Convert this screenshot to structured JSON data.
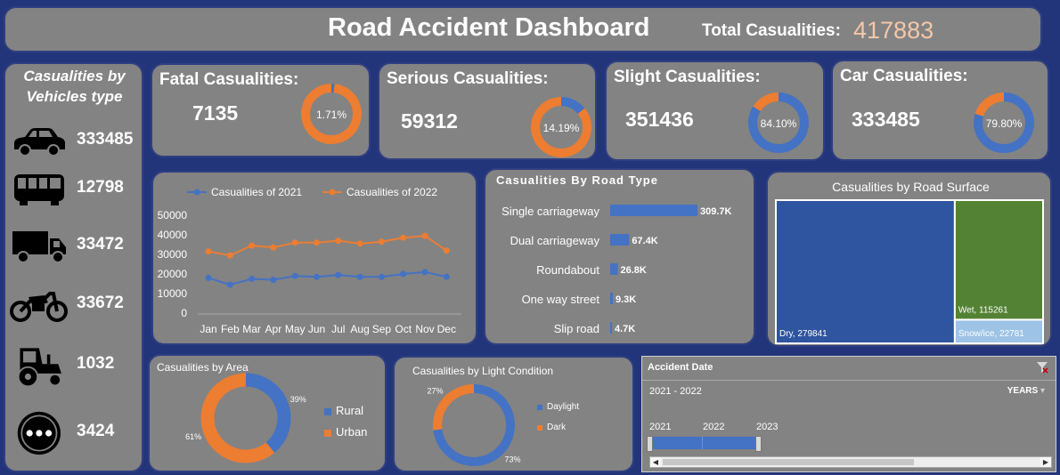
{
  "header": {
    "title": "Road Accident Dashboard",
    "total_label": "Total Casualities:",
    "total_value": "417883"
  },
  "vehicles": {
    "title_line1": "Casualities by",
    "title_line2": "Vehicles type",
    "items": [
      {
        "icon": "car-icon",
        "value": "333485"
      },
      {
        "icon": "bus-icon",
        "value": "12798"
      },
      {
        "icon": "truck-icon",
        "value": "33472"
      },
      {
        "icon": "motorcycle-icon",
        "value": "33672"
      },
      {
        "icon": "tractor-icon",
        "value": "1032"
      },
      {
        "icon": "more-icon",
        "value": "3424"
      }
    ]
  },
  "kpis": [
    {
      "label": "Fatal Casualities:",
      "value": "7135",
      "pct_label": "1.71%",
      "pct": 0.0171
    },
    {
      "label": "Serious Casualities:",
      "value": "59312",
      "pct_label": "14.19%",
      "pct": 0.1419
    },
    {
      "label": "Slight Casualities:",
      "value": "351436",
      "pct_label": "84.10%",
      "pct": 0.841
    },
    {
      "label": "Car Casualities:",
      "value": "333485",
      "pct_label": "79.80%",
      "pct": 0.798
    }
  ],
  "colors": {
    "background": "#23357a",
    "panel": "#838383",
    "blue": "#4472c4",
    "orange": "#ed7d31",
    "green": "#548235",
    "light_blue": "#9dc3e6"
  },
  "chart_data": [
    {
      "type": "line",
      "categories": [
        "Jan",
        "Feb",
        "Mar",
        "Apr",
        "May",
        "Jun",
        "Jul",
        "Aug",
        "Sep",
        "Oct",
        "Nov",
        "Dec"
      ],
      "series": [
        {
          "name": "Casualities of 2021",
          "values": [
            18000,
            14500,
            17500,
            17000,
            19000,
            18500,
            19500,
            18500,
            18500,
            20000,
            21000,
            18500
          ]
        },
        {
          "name": "Casualities of 2022",
          "values": [
            31500,
            29500,
            34500,
            33500,
            36000,
            36000,
            37000,
            35500,
            36500,
            38500,
            39500,
            32000
          ]
        }
      ],
      "yticks": [
        "0",
        "10000",
        "20000",
        "30000",
        "40000",
        "50000"
      ],
      "ylim": [
        0,
        50000
      ],
      "legend": "top"
    },
    {
      "type": "bar",
      "orientation": "horizontal",
      "title": "Casualities By Road Type",
      "categories": [
        "Single carriageway",
        "Dual carriageway",
        "Roundabout",
        "One way street",
        "Slip road"
      ],
      "values": [
        309.7,
        67.4,
        26.8,
        9.3,
        4.7
      ],
      "labels": [
        "309.7K",
        "67.4K",
        "26.8K",
        "9.3K",
        "4.7K"
      ]
    },
    {
      "type": "treemap",
      "title": "Casualities by Road Surface",
      "categories": [
        "Dry",
        "Wet",
        "Snow/ice"
      ],
      "values": [
        279841,
        115261,
        22781
      ],
      "labels": [
        "Dry, 279841",
        "Wet, 115261",
        "Snow/ice, 22781"
      ]
    },
    {
      "type": "pie",
      "title": "Casualities by Area",
      "categories": [
        "Rural",
        "Urban"
      ],
      "values": [
        39,
        61
      ],
      "labels": [
        "39%",
        "61%"
      ],
      "legend": "right"
    },
    {
      "type": "pie",
      "title": "Casualities by Light Condition",
      "categories": [
        "Daylight",
        "Dark"
      ],
      "values": [
        73,
        27
      ],
      "labels": [
        "73%",
        "27%"
      ],
      "legend": "right"
    }
  ],
  "timeline": {
    "title": "Accident Date",
    "range": "2021 - 2022",
    "level": "YEARS",
    "years": [
      "2021",
      "2022",
      "2023"
    ],
    "selected": [
      "2021",
      "2022"
    ]
  }
}
